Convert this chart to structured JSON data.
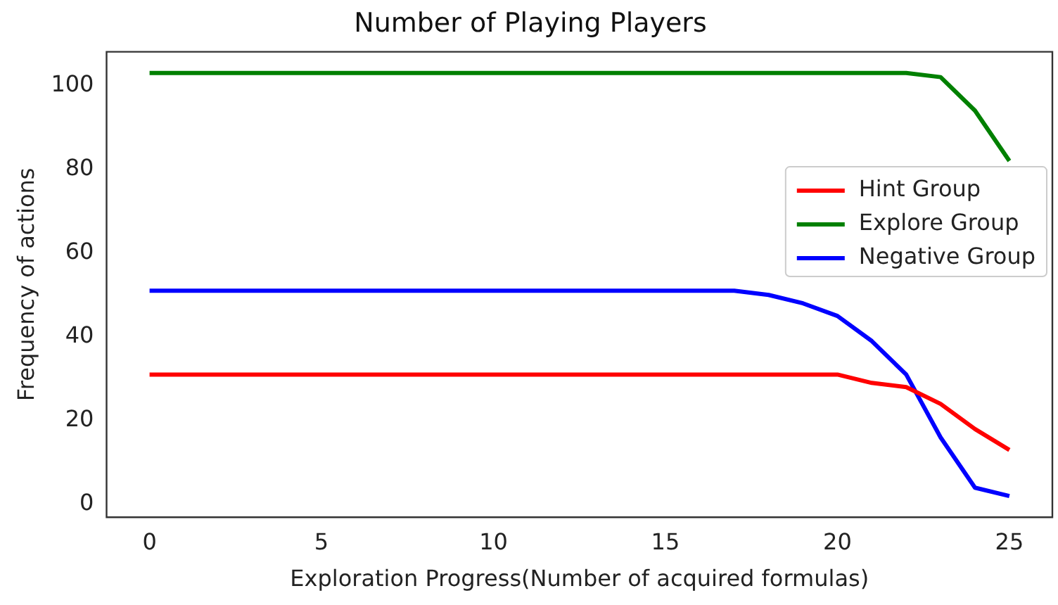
{
  "chart_data": {
    "type": "line",
    "title": "Number of Playing Players",
    "xlabel": "Exploration Progress(Number of acquired formulas)",
    "ylabel": "Frequency of actions",
    "x": [
      0,
      1,
      2,
      3,
      4,
      5,
      6,
      7,
      8,
      9,
      10,
      11,
      12,
      13,
      14,
      15,
      16,
      17,
      18,
      19,
      20,
      21,
      22,
      23,
      24,
      25
    ],
    "series": [
      {
        "name": "Hint Group",
        "color": "#ff0000",
        "values": [
          31,
          31,
          31,
          31,
          31,
          31,
          31,
          31,
          31,
          31,
          31,
          31,
          31,
          31,
          31,
          31,
          31,
          31,
          31,
          31,
          31,
          29,
          28,
          24,
          18,
          13
        ]
      },
      {
        "name": "Explore Group",
        "color": "#008000",
        "values": [
          103,
          103,
          103,
          103,
          103,
          103,
          103,
          103,
          103,
          103,
          103,
          103,
          103,
          103,
          103,
          103,
          103,
          103,
          103,
          103,
          103,
          103,
          103,
          102,
          94,
          82
        ]
      },
      {
        "name": "Negative Group",
        "color": "#0000ff",
        "values": [
          51,
          51,
          51,
          51,
          51,
          51,
          51,
          51,
          51,
          51,
          51,
          51,
          51,
          51,
          51,
          51,
          51,
          51,
          50,
          48,
          45,
          39,
          31,
          16,
          4,
          2
        ]
      }
    ],
    "xlim": [
      -1.25,
      26.25
    ],
    "xticks": [
      0,
      5,
      10,
      15,
      20,
      25
    ],
    "ylim": [
      -3.05,
      108.05
    ],
    "yticks": [
      0,
      20,
      40,
      60,
      80,
      100
    ],
    "grid": false,
    "legend": "center right",
    "marker": "none",
    "line_style": "solid"
  }
}
